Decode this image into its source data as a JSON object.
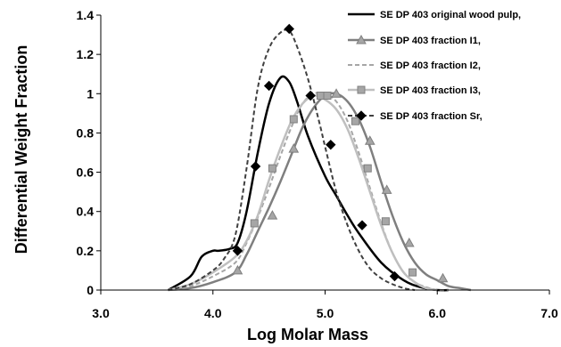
{
  "chart_data": {
    "type": "line",
    "title": "",
    "xlabel": "Log Molar Mass",
    "ylabel": "Differential Weight Fraction",
    "xlim": [
      3.0,
      7.0
    ],
    "ylim": [
      0,
      1.4
    ],
    "x_ticks": [
      "3.0",
      "4.0",
      "5.0",
      "6.0",
      "7.0"
    ],
    "y_ticks": [
      "0",
      "0.2",
      "0.4",
      "0.6",
      "0.8",
      "1",
      "1.2",
      "1.4"
    ],
    "grid": false,
    "legend_position": "top-right",
    "series": [
      {
        "name": "SE DP 403 original wood pulp,",
        "color": "#000000",
        "dash": "solid",
        "marker": "none",
        "marker_fill": "",
        "x": [
          3.6,
          3.8,
          3.9,
          4.0,
          4.05,
          4.15,
          4.22,
          4.3,
          4.4,
          4.5,
          4.6,
          4.68,
          4.75,
          4.85,
          5.0,
          5.1,
          5.2,
          5.3,
          5.5,
          5.7,
          5.85,
          6.0,
          6.1
        ],
        "y": [
          0.0,
          0.07,
          0.17,
          0.2,
          0.2,
          0.21,
          0.24,
          0.4,
          0.7,
          0.95,
          1.08,
          1.06,
          0.96,
          0.78,
          0.58,
          0.48,
          0.38,
          0.29,
          0.14,
          0.05,
          0.015,
          0.0,
          0.0
        ],
        "markers_x": [],
        "markers_y": []
      },
      {
        "name": "SE DP 403 fraction I1,",
        "color": "#7f7f7f",
        "dash": "solid",
        "marker": "triangle",
        "marker_fill": "#a6a6a6",
        "x": [
          3.6,
          3.8,
          4.0,
          4.2,
          4.3,
          4.4,
          4.5,
          4.6,
          4.7,
          4.8,
          4.9,
          5.0,
          5.1,
          5.2,
          5.3,
          5.4,
          5.5,
          5.6,
          5.7,
          5.8,
          5.9,
          6.0,
          6.1,
          6.2,
          6.3
        ],
        "y": [
          0.0,
          0.01,
          0.04,
          0.09,
          0.18,
          0.3,
          0.42,
          0.55,
          0.69,
          0.83,
          0.93,
          0.99,
          1.0,
          0.96,
          0.87,
          0.73,
          0.55,
          0.38,
          0.24,
          0.14,
          0.08,
          0.05,
          0.02,
          0.01,
          0.0
        ],
        "markers_x": [
          4.22,
          4.53,
          4.72,
          5.1,
          5.4,
          5.55,
          5.75,
          6.05
        ],
        "markers_y": [
          0.1,
          0.38,
          0.72,
          1.0,
          0.76,
          0.51,
          0.24,
          0.06
        ]
      },
      {
        "name": "SE DP 403 fraction I2,",
        "color": "#a6a6a6",
        "dash": "dashed",
        "marker": "none",
        "marker_fill": "",
        "x": [
          3.6,
          3.8,
          4.0,
          4.2,
          4.3,
          4.4,
          4.5,
          4.6,
          4.7,
          4.8,
          4.9,
          5.0,
          5.1,
          5.2,
          5.3,
          5.4,
          5.5,
          5.6,
          5.7,
          5.8,
          5.9,
          6.0,
          6.1
        ],
        "y": [
          0.0,
          0.02,
          0.07,
          0.14,
          0.24,
          0.37,
          0.52,
          0.68,
          0.83,
          0.95,
          1.0,
          1.0,
          0.96,
          0.86,
          0.7,
          0.52,
          0.34,
          0.19,
          0.09,
          0.04,
          0.015,
          0.0,
          0.0
        ],
        "markers_x": [],
        "markers_y": []
      },
      {
        "name": "SE DP 403 fraction I3,",
        "color": "#bfbfbf",
        "dash": "solid",
        "marker": "square",
        "marker_fill": "#a6a6a6",
        "x": [
          3.6,
          3.8,
          4.0,
          4.2,
          4.3,
          4.4,
          4.5,
          4.6,
          4.7,
          4.8,
          4.9,
          5.0,
          5.1,
          5.2,
          5.3,
          5.4,
          5.5,
          5.6,
          5.7,
          5.8,
          5.9,
          6.0
        ],
        "y": [
          0.0,
          0.03,
          0.09,
          0.17,
          0.25,
          0.38,
          0.56,
          0.72,
          0.86,
          0.95,
          0.99,
          0.97,
          0.92,
          0.82,
          0.67,
          0.5,
          0.33,
          0.19,
          0.09,
          0.04,
          0.01,
          0.0
        ],
        "markers_x": [
          4.37,
          4.53,
          4.72,
          4.96,
          5.02,
          5.27,
          5.38,
          5.54,
          5.78
        ],
        "markers_y": [
          0.34,
          0.62,
          0.87,
          0.99,
          0.99,
          0.86,
          0.62,
          0.35,
          0.09
        ]
      },
      {
        "name": "SE DP 403 fraction Sr,",
        "color": "#404040",
        "dash": "dashed",
        "marker": "diamond",
        "marker_fill": "#000000",
        "x": [
          3.6,
          3.8,
          4.0,
          4.1,
          4.2,
          4.3,
          4.4,
          4.5,
          4.6,
          4.68,
          4.75,
          4.85,
          4.95,
          5.0,
          5.1,
          5.2,
          5.3,
          5.4,
          5.5,
          5.6,
          5.7,
          5.8
        ],
        "y": [
          0.0,
          0.03,
          0.1,
          0.16,
          0.28,
          0.62,
          1.03,
          1.23,
          1.31,
          1.32,
          1.24,
          1.07,
          0.85,
          0.73,
          0.5,
          0.33,
          0.2,
          0.11,
          0.06,
          0.03,
          0.01,
          0.0
        ],
        "markers_x": [
          4.22,
          4.38,
          4.5,
          4.68,
          4.87,
          5.05,
          5.33,
          5.62
        ],
        "markers_y": [
          0.2,
          0.63,
          1.04,
          1.33,
          0.99,
          0.74,
          0.33,
          0.07
        ]
      }
    ]
  }
}
